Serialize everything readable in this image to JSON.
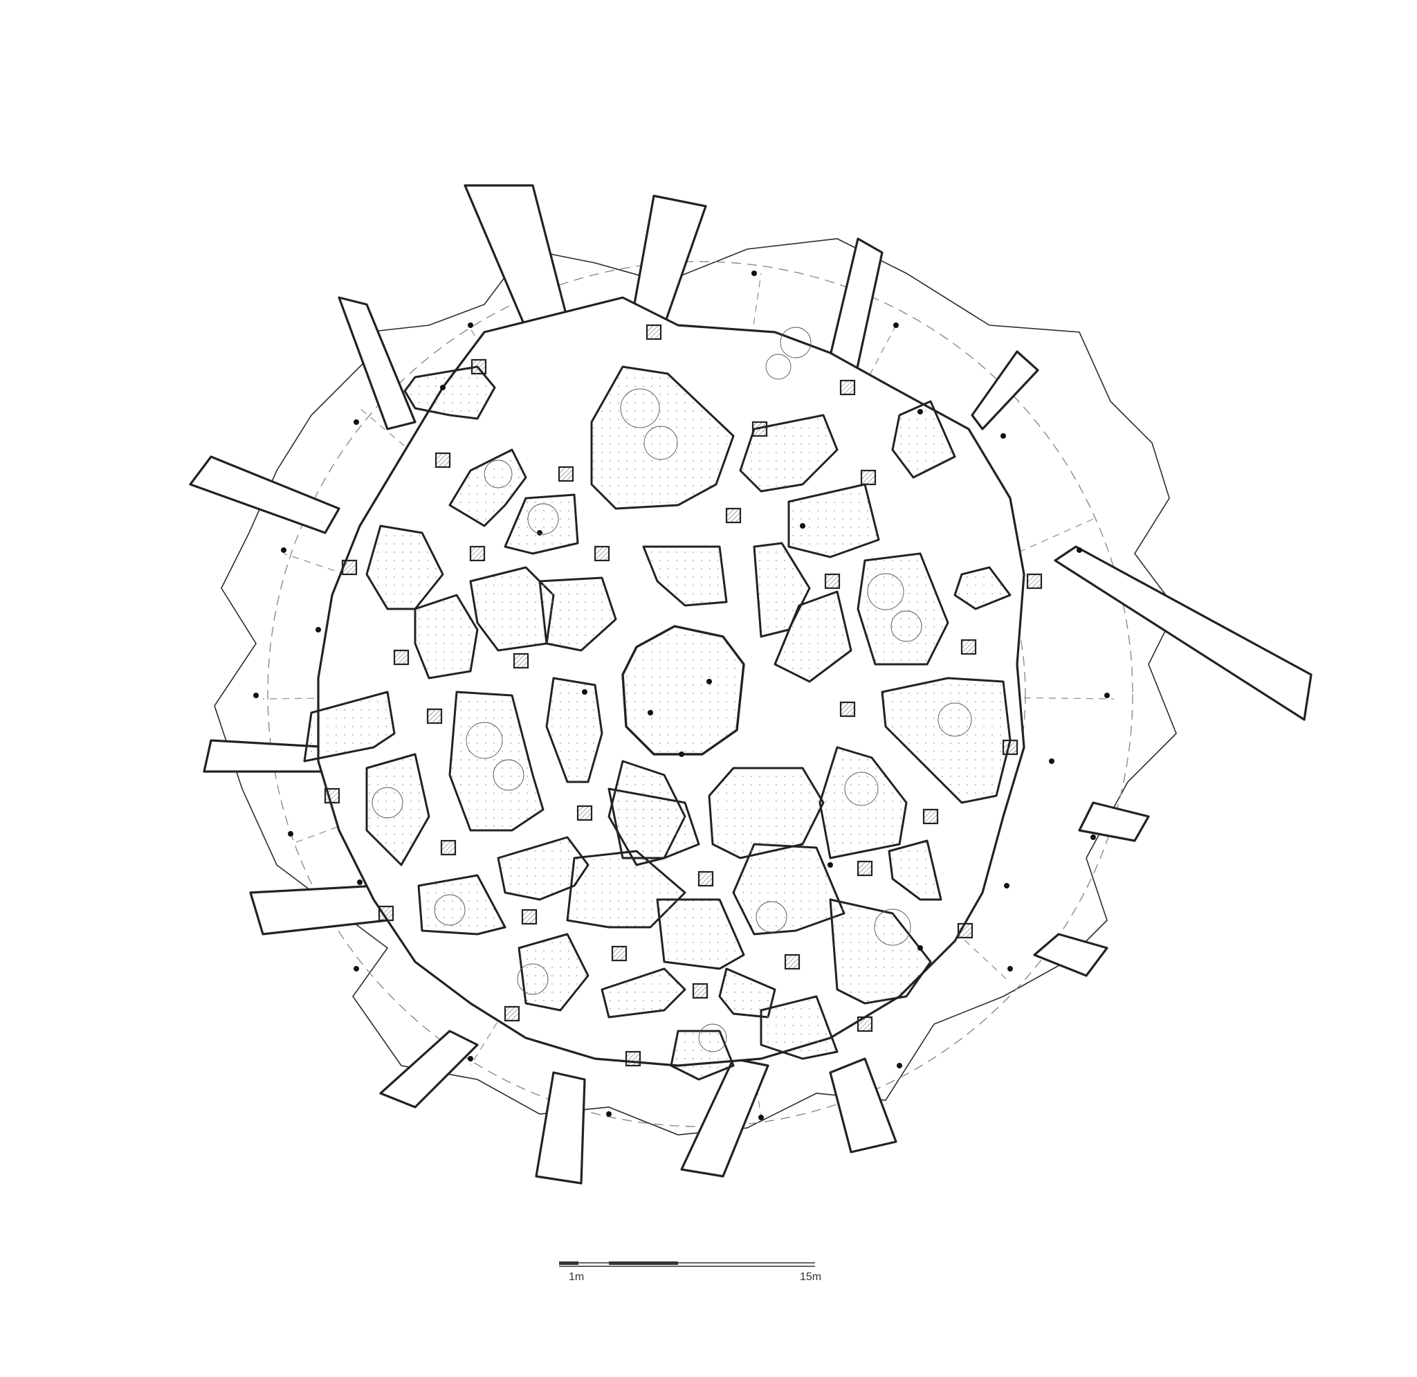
{
  "scale_bar": {
    "label_start": "1m",
    "label_end": "15m"
  },
  "colors": {
    "ink": "#222222",
    "dash": "#8a8a8a",
    "background": "#ffffff"
  }
}
